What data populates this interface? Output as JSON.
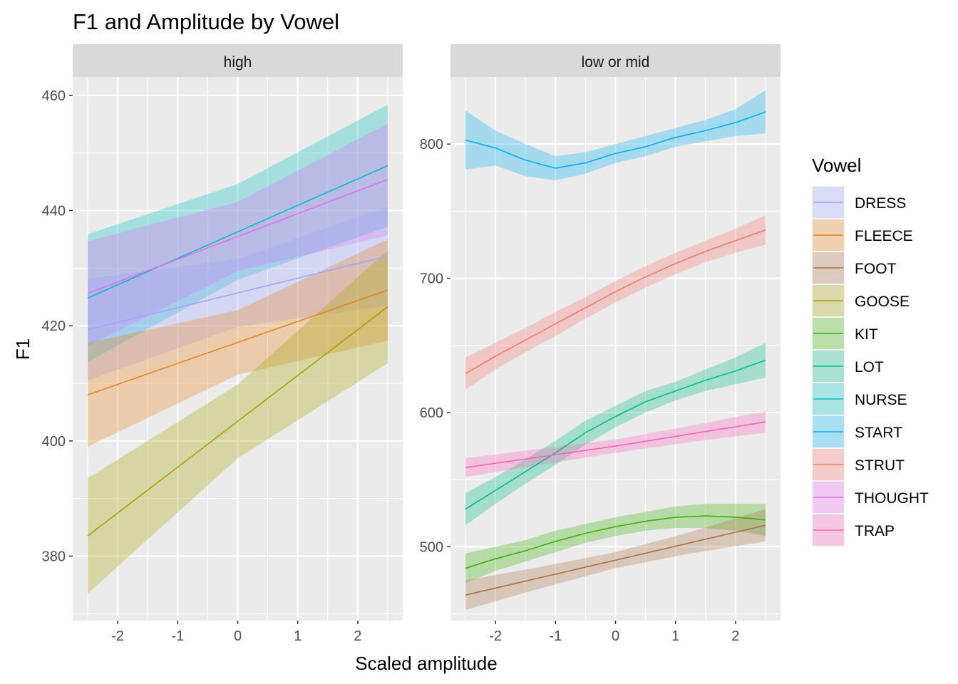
{
  "chart_data": {
    "type": "line",
    "title": "F1 and Amplitude by Vowel",
    "xlabel": "Scaled amplitude",
    "ylabel": "F1",
    "legend_title": "Vowel",
    "legend_position": "right",
    "colors": {
      "DRESS": "#A3A5FF",
      "FLEECE": "#E7861B",
      "FOOT": "#AC7144",
      "GOOSE": "#A7A100",
      "KIT": "#38B202",
      "LOT": "#00BE83",
      "NURSE": "#00BFC4",
      "START": "#00B0F6",
      "STRUT": "#F8766D",
      "THOUGHT": "#E76BF3",
      "TRAP": "#FF62BC"
    },
    "legend": [
      "DRESS",
      "FLEECE",
      "FOOT",
      "GOOSE",
      "KIT",
      "LOT",
      "NURSE",
      "START",
      "STRUT",
      "THOUGHT",
      "TRAP"
    ],
    "panels": [
      {
        "strip": "high",
        "xlim": [
          -2.75,
          2.75
        ],
        "ylim": [
          368.8,
          463.2
        ],
        "x_ticks": [
          -2,
          -1,
          0,
          1,
          2
        ],
        "x_tick_labels": [
          "-2",
          "-1",
          "0",
          "1",
          "2"
        ],
        "y_ticks": [
          380,
          400,
          420,
          440,
          460
        ],
        "y_tick_labels": [
          "380",
          "400",
          "420",
          "440",
          "460"
        ],
        "series": [
          {
            "name": "NURSE",
            "x": [
              -2.5,
              0,
              2.5
            ],
            "y": [
              424.8,
              436.3,
              447.8
            ],
            "lo": [
              413.7,
              428.0,
              437.2
            ],
            "hi": [
              435.9,
              444.6,
              458.4
            ]
          },
          {
            "name": "THOUGHT",
            "x": [
              -2.5,
              0,
              2.5
            ],
            "y": [
              425.6,
              435.5,
              445.4
            ],
            "lo": [
              416.5,
              429.5,
              435.7
            ],
            "hi": [
              434.7,
              441.5,
              455.1
            ]
          },
          {
            "name": "DRESS",
            "x": [
              -2.5,
              0,
              2.5
            ],
            "y": [
              419.3,
              425.7,
              432.1
            ],
            "lo": [
              410.5,
              419.8,
              423.5
            ],
            "hi": [
              428.1,
              431.6,
              440.7
            ]
          },
          {
            "name": "FLEECE",
            "x": [
              -2.5,
              0,
              2.5
            ],
            "y": [
              408.0,
              417.1,
              426.2
            ],
            "lo": [
              399.0,
              411.5,
              417.4
            ],
            "hi": [
              417.0,
              422.7,
              435.0
            ]
          },
          {
            "name": "GOOSE",
            "x": [
              -2.5,
              0,
              2.5
            ],
            "y": [
              383.5,
              403.4,
              423.3
            ],
            "lo": [
              373.5,
              397.0,
              413.5
            ],
            "hi": [
              393.5,
              409.8,
              433.1
            ]
          }
        ]
      },
      {
        "strip": "low or mid",
        "xlim": [
          -2.75,
          2.75
        ],
        "ylim": [
          445.0,
          850.0
        ],
        "x_ticks": [
          -2,
          -1,
          0,
          1,
          2
        ],
        "x_tick_labels": [
          "-2",
          "-1",
          "0",
          "1",
          "2"
        ],
        "y_ticks": [
          500,
          600,
          700,
          800
        ],
        "y_tick_labels": [
          "500",
          "600",
          "700",
          "800"
        ],
        "series": [
          {
            "name": "START",
            "x": [
              -2.5,
              -2,
              -1.5,
              -1,
              -0.5,
              0,
              0.5,
              1,
              1.5,
              2,
              2.5
            ],
            "y": [
              803,
              797,
              788,
              782,
              786,
              793,
              798,
              805,
              810,
              816,
              824
            ],
            "lo": [
              781,
              784,
              776,
              773,
              778,
              786,
              791,
              798,
              802,
              806,
              808
            ],
            "hi": [
              825,
              810,
              800,
              791,
              794,
              800,
              806,
              812,
              818,
              826,
              840
            ]
          },
          {
            "name": "STRUT",
            "x": [
              -2.5,
              -2,
              -1.5,
              -1,
              -0.5,
              0,
              0.5,
              1,
              1.5,
              2,
              2.5
            ],
            "y": [
              629,
              642,
              654,
              666,
              678,
              690,
              701,
              711,
              720,
              728,
              736
            ],
            "lo": [
              617,
              632,
              645,
              657,
              670,
              682,
              693,
              703,
              712,
              719,
              725
            ],
            "hi": [
              641,
              652,
              663,
              675,
              686,
              698,
              709,
              719,
              728,
              737,
              747
            ]
          },
          {
            "name": "LOT",
            "x": [
              -2.5,
              -2,
              -1.5,
              -1,
              -0.5,
              0,
              0.5,
              1,
              1.5,
              2,
              2.5
            ],
            "y": [
              528,
              542,
              556,
              570,
              585,
              597,
              608,
              616,
              624,
              631,
              639
            ],
            "lo": [
              516,
              532,
              547,
              561,
              576,
              589,
              600,
              609,
              616,
              621,
              626
            ],
            "hi": [
              540,
              552,
              565,
              579,
              594,
              605,
              616,
              623,
              632,
              641,
              652
            ]
          },
          {
            "name": "TRAP",
            "x": [
              -2.5,
              -1.25,
              0,
              1.25,
              2.5
            ],
            "y": [
              559,
              567,
              575,
              584,
              593
            ],
            "lo": [
              552,
              561,
              570,
              578,
              585
            ],
            "hi": [
              566,
              573,
              580,
              590,
              601
            ]
          },
          {
            "name": "KIT",
            "x": [
              -2.5,
              -2,
              -1.5,
              -1,
              -0.5,
              0,
              0.5,
              1,
              1.5,
              2,
              2.5
            ],
            "y": [
              484,
              491,
              497,
              504,
              510,
              515,
              519,
              522,
              523,
              522,
              520
            ],
            "lo": [
              473,
              482,
              489,
              496,
              503,
              508,
              512,
              514,
              514,
              512,
              508
            ],
            "hi": [
              495,
              500,
              505,
              512,
              517,
              522,
              526,
              530,
              532,
              532,
              532
            ]
          },
          {
            "name": "FOOT",
            "x": [
              -2.5,
              -1.25,
              0,
              1.25,
              2.5
            ],
            "y": [
              464,
              477,
              490,
              503,
              516
            ],
            "lo": [
              453,
              469,
              484,
              495,
              504
            ],
            "hi": [
              475,
              485,
              496,
              511,
              528
            ]
          }
        ]
      }
    ]
  }
}
